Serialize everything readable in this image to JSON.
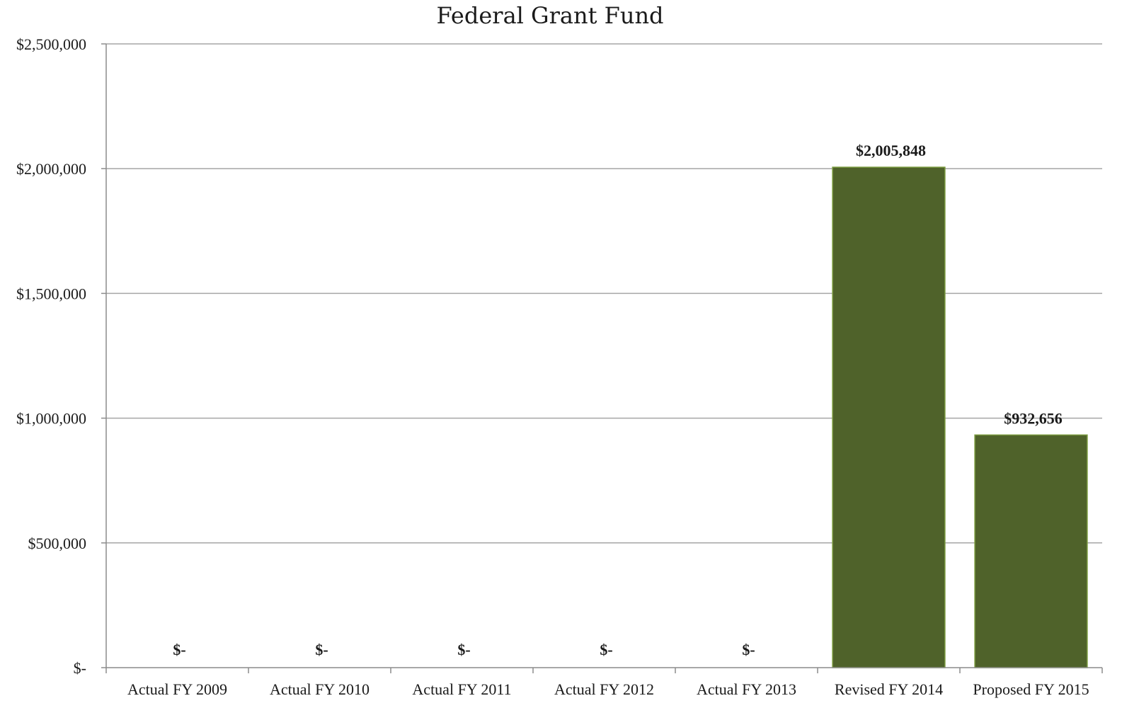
{
  "chart_data": {
    "type": "bar",
    "title": "Federal Grant Fund",
    "categories": [
      "Actual FY 2009",
      "Actual FY 2010",
      "Actual FY 2011",
      "Actual FY 2012",
      "Actual FY 2013",
      "Revised FY 2014",
      "Proposed FY 2015"
    ],
    "values": [
      0,
      0,
      0,
      0,
      0,
      2005848,
      932656
    ],
    "data_labels": [
      "$-",
      "$-",
      "$-",
      "$-",
      "$-",
      "$2,005,848",
      "$932,656"
    ],
    "y_ticks": [
      0,
      500000,
      1000000,
      1500000,
      2000000,
      2500000
    ],
    "y_tick_labels": [
      "$-",
      "$500,000",
      "$1,000,000",
      "$1,500,000",
      "$2,000,000",
      "$2,500,000"
    ],
    "ylim": [
      0,
      2500000
    ],
    "xlabel": "",
    "ylabel": "",
    "grid": true,
    "legend": "none",
    "bar_color": "#4f622a",
    "bar_edge_color": "#7a9a3e"
  }
}
